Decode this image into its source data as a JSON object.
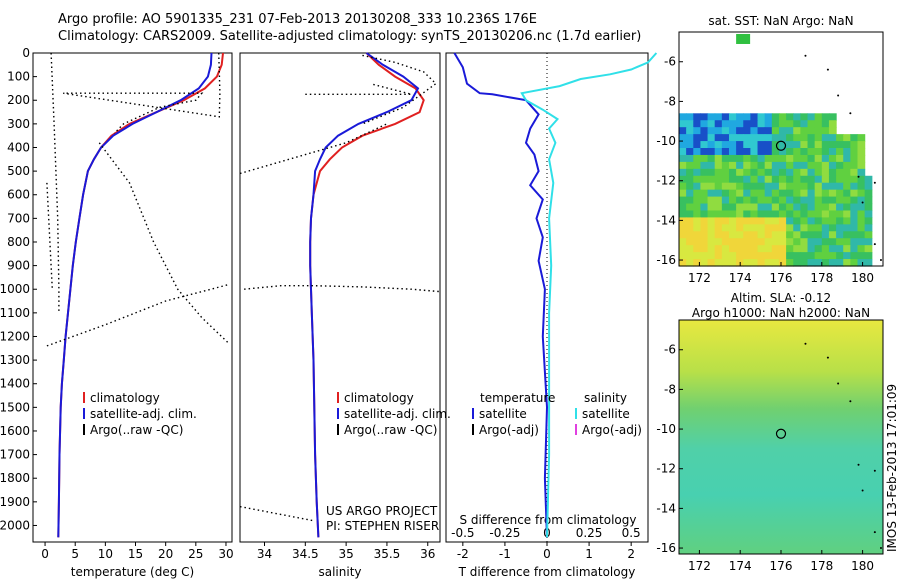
{
  "header": {
    "title_line1": "Argo profile: AO 5901335_231 07-Feb-2013 20130208_333 10.236S 176E",
    "title_line2": "Climatology: CARS2009. Satellite-adjusted climatology: synTS_20130206.nc (1.7d earlier)"
  },
  "colors": {
    "climatology": "#e02020",
    "satellite": "#1a1ad8",
    "argo": "#000000",
    "salinity_diff": "#30e0e8",
    "salinity_argo": "#e040e0"
  },
  "chart_data": [
    {
      "type": "line",
      "id": "temperature",
      "xlabel": "temperature (deg C)",
      "ylabel": "",
      "xlim": [
        -2,
        31
      ],
      "ylim": [
        2070,
        0
      ],
      "xticks": [
        0,
        5,
        10,
        15,
        20,
        25,
        30
      ],
      "yticks": [
        0,
        100,
        200,
        300,
        400,
        500,
        600,
        700,
        800,
        900,
        1000,
        1100,
        1200,
        1300,
        1400,
        1500,
        1600,
        1700,
        1800,
        1900,
        2000
      ],
      "legend": [
        "climatology",
        "satellite-adj. clim.",
        "Argo(..raw -QC)"
      ],
      "series": [
        {
          "name": "climatology",
          "style": "solid",
          "color": "#e02020",
          "x": [
            29.5,
            29.3,
            28.5,
            26.5,
            23,
            18.5,
            14,
            11,
            9.3,
            8.1,
            7.1,
            6.3,
            5.7,
            5.1,
            4.6,
            4.2,
            3.8,
            3.4,
            3.1,
            2.8,
            2.6,
            2.4,
            2.3,
            2.2
          ],
          "y": [
            0,
            50,
            100,
            150,
            200,
            250,
            300,
            350,
            400,
            450,
            500,
            600,
            700,
            800,
            900,
            1000,
            1100,
            1200,
            1300,
            1400,
            1500,
            1700,
            1900,
            2050
          ]
        },
        {
          "name": "satellite-adj. clim.",
          "style": "solid",
          "color": "#1a1ad8",
          "x": [
            27.6,
            27.5,
            27.0,
            25.5,
            22.5,
            18.5,
            14.5,
            11.3,
            9.3,
            8.1,
            7.1,
            6.3,
            5.7,
            5.1,
            4.6,
            4.2,
            3.8,
            3.4,
            3.1,
            2.8,
            2.6,
            2.4,
            2.3,
            2.2
          ],
          "y": [
            0,
            50,
            100,
            150,
            200,
            250,
            300,
            350,
            400,
            450,
            500,
            600,
            700,
            800,
            900,
            1000,
            1100,
            1200,
            1300,
            1400,
            1500,
            1700,
            1900,
            2050
          ]
        },
        {
          "name": "Argo(..raw -QC)",
          "style": "dotted",
          "color": "#000000",
          "x": [
            28.8,
            28.9,
            29.0,
            28.9,
            3.0,
            26,
            25,
            19,
            13,
            11.5
          ],
          "y": [
            0,
            80,
            170,
            270,
            170,
            170,
            200,
            230,
            300,
            340
          ]
        },
        {
          "name": "Argo(..raw -QC)",
          "style": "dotted",
          "color": "#000000",
          "x": [
            1.0,
            1.5,
            2.1,
            2.3,
            2.3
          ],
          "y": [
            0,
            300,
            700,
            1000,
            1100
          ]
        },
        {
          "name": "Argo(..raw -QC)",
          "style": "dotted",
          "color": "#000000",
          "x": [
            9,
            14,
            18,
            22,
            26,
            30.5
          ],
          "y": [
            380,
            550,
            800,
            1000,
            1120,
            1230
          ]
        },
        {
          "name": "Argo(..raw -QC)",
          "style": "dotted",
          "color": "#000000",
          "x": [
            0.3,
            10,
            20,
            30.5
          ],
          "y": [
            1240,
            1150,
            1050,
            980
          ]
        },
        {
          "name": "Argo(..raw -QC)",
          "style": "dotted",
          "color": "#000000",
          "x": [
            0.3,
            0.8,
            1.2
          ],
          "y": [
            550,
            800,
            1000
          ]
        }
      ]
    },
    {
      "type": "line",
      "id": "salinity",
      "xlabel": "salinity",
      "ylabel": "",
      "xlim": [
        33.7,
        36.15
      ],
      "ylim": [
        2070,
        0
      ],
      "xticks": [
        34,
        34.5,
        35,
        35.5,
        36
      ],
      "xtick_labels": [
        "34",
        "34.5",
        "35",
        "35.5",
        "36"
      ],
      "legend": [
        "climatology",
        "satellite-adj. clim.",
        "Argo(..raw -QC)"
      ],
      "annotations": [
        "US ARGO PROJECT",
        "PI: STEPHEN RISER"
      ],
      "series": [
        {
          "name": "climatology",
          "style": "solid",
          "color": "#e02020",
          "x": [
            35.25,
            35.4,
            35.6,
            35.85,
            35.95,
            35.9,
            35.6,
            35.2,
            34.95,
            34.8,
            34.68,
            34.6,
            34.57,
            34.56,
            34.56,
            34.57,
            34.58,
            34.6,
            34.61,
            34.62,
            34.64,
            34.66
          ],
          "y": [
            0,
            50,
            100,
            150,
            200,
            250,
            300,
            350,
            400,
            450,
            500,
            600,
            700,
            800,
            900,
            1000,
            1100,
            1300,
            1500,
            1700,
            1900,
            2050
          ]
        },
        {
          "name": "satellite-adj. clim.",
          "style": "solid",
          "color": "#1a1ad8",
          "x": [
            35.25,
            35.45,
            35.7,
            35.88,
            35.8,
            35.5,
            35.15,
            34.9,
            34.75,
            34.68,
            34.62,
            34.6,
            34.57,
            34.56,
            34.56,
            34.57,
            34.58,
            34.6,
            34.61,
            34.62,
            34.64,
            34.66
          ],
          "y": [
            0,
            50,
            100,
            150,
            200,
            250,
            300,
            350,
            400,
            450,
            500,
            600,
            700,
            800,
            900,
            1000,
            1100,
            1300,
            1500,
            1700,
            1900,
            2050
          ]
        },
        {
          "name": "Argo(..raw -QC)",
          "style": "dotted",
          "color": "#000000",
          "x": [
            35.2,
            35.6,
            35.95,
            36.1,
            35.9,
            35.7,
            35.2
          ],
          "y": [
            10,
            40,
            80,
            130,
            180,
            230,
            300
          ]
        },
        {
          "name": "Argo(..raw -QC)",
          "style": "dotted",
          "color": "#000000",
          "x": [
            34.5,
            35.8,
            35.3
          ],
          "y": [
            175,
            175,
            130
          ]
        },
        {
          "name": "Argo(..raw -QC)",
          "style": "dotted",
          "color": "#000000",
          "x": [
            33.7,
            34.3,
            35.0,
            35.5
          ],
          "y": [
            510,
            450,
            380,
            300
          ]
        },
        {
          "name": "Argo(..raw -QC)",
          "style": "dotted",
          "color": "#000000",
          "x": [
            33.75,
            34.2,
            34.6,
            35.2,
            35.8,
            36.15
          ],
          "y": [
            1000,
            985,
            985,
            990,
            1000,
            1010
          ]
        },
        {
          "name": "Argo(..raw -QC)",
          "style": "dotted",
          "color": "#000000",
          "x": [
            33.7,
            34.0,
            34.3,
            34.6
          ],
          "y": [
            1920,
            1940,
            1960,
            1980
          ]
        }
      ]
    },
    {
      "type": "line",
      "id": "difference",
      "xlabel": "T difference from climatology",
      "top_label": "S difference from climatology",
      "xlim": [
        -2.4,
        2.4
      ],
      "ylim": [
        2070,
        0
      ],
      "xticks": [
        -2,
        -1,
        0,
        1,
        2
      ],
      "top_ticks": [
        -0.5,
        -0.25,
        0,
        0.25,
        0.5
      ],
      "top_tick_labels": [
        "-0.5",
        "-0.25",
        "0",
        "0.25",
        "0.5"
      ],
      "legend_left_title": "temperature",
      "legend_right_title": "salinity",
      "legend": [
        "satellite",
        "Argo(-adj)",
        "satellite",
        "Argo(-adj)"
      ],
      "series": [
        {
          "name": "satellite",
          "group": "temperature",
          "style": "solid",
          "color": "#1a1ad8",
          "x": [
            -2.2,
            -2.0,
            -1.9,
            -1.6,
            -1.3,
            -0.5,
            -0.2,
            -0.4,
            -0.5,
            -0.3,
            -0.2,
            -0.4,
            -0.1,
            -0.25,
            -0.1,
            -0.2,
            -0.05,
            -0.1,
            0,
            -0.05,
            0
          ],
          "y": [
            0,
            60,
            130,
            170,
            175,
            200,
            260,
            320,
            380,
            430,
            500,
            560,
            620,
            700,
            780,
            880,
            1000,
            1200,
            1500,
            1800,
            2050
          ]
        },
        {
          "name": "satellite",
          "group": "salinity",
          "style": "solid",
          "color": "#30e0e8",
          "x": [
            2.6,
            2.4,
            2.0,
            1.5,
            0.8,
            0.3,
            -0.6,
            -0.5,
            -0.1,
            0.25,
            0.05,
            0.2,
            0.05,
            0.15,
            0.05,
            0.1,
            0.05,
            0.05,
            0.05,
            0
          ],
          "y": [
            0,
            40,
            70,
            90,
            110,
            140,
            170,
            200,
            240,
            280,
            320,
            380,
            450,
            550,
            700,
            900,
            1100,
            1400,
            1700,
            2050
          ]
        }
      ]
    },
    {
      "type": "heatmap",
      "id": "sst",
      "title": "sat. SST: NaN Argo: NaN",
      "xlim": [
        171,
        181
      ],
      "ylim": [
        -16.3,
        -4.5
      ],
      "xticks": [
        172,
        174,
        176,
        178,
        180
      ],
      "yticks": [
        -6,
        -8,
        -10,
        -12,
        -14,
        -16
      ],
      "marker": {
        "lon": 176.0,
        "lat": -10.236
      }
    },
    {
      "type": "heatmap",
      "id": "sla",
      "title_line1": "Altim. SLA: -0.12",
      "title_line2": "Argo h1000: NaN h2000: NaN",
      "xlim": [
        171,
        181
      ],
      "ylim": [
        -16.3,
        -4.5
      ],
      "xticks": [
        172,
        174,
        176,
        178,
        180
      ],
      "yticks": [
        -6,
        -8,
        -10,
        -12,
        -14,
        -16
      ],
      "marker": {
        "lon": 176.0,
        "lat": -10.236
      }
    }
  ],
  "side_label": "IMOS 13-Feb-2013 17:01:09"
}
